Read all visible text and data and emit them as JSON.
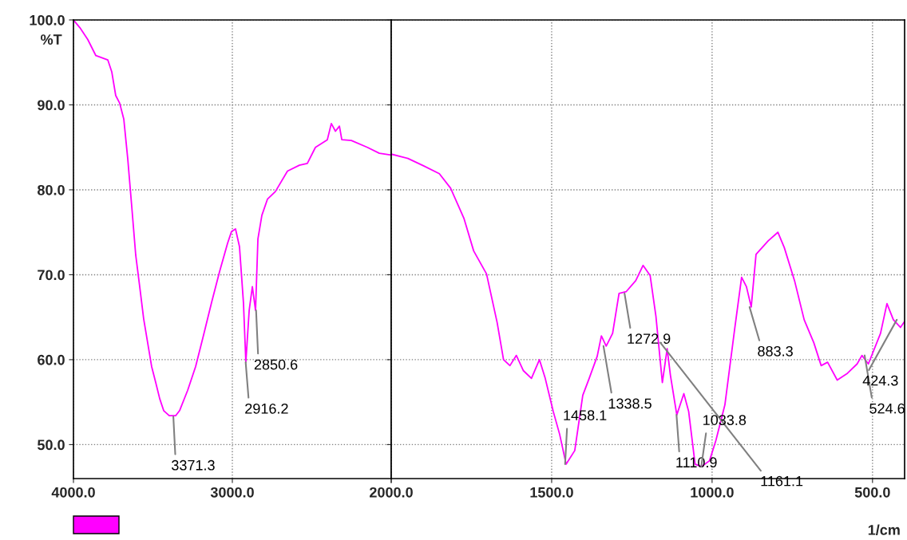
{
  "chart_data": [
    {
      "type": "line",
      "ylabel": "%T",
      "color": "#ff00ff",
      "grid": true,
      "xlim": [
        4000,
        2000
      ],
      "ylim": [
        46,
        100
      ],
      "xticks": [
        {
          "value": 4000,
          "label": "4000.0"
        },
        {
          "value": 3000,
          "label": "3000.0"
        },
        {
          "value": 2000,
          "label": "2000.0"
        }
      ],
      "yticks": [
        {
          "value": 50,
          "label": "50.0"
        },
        {
          "value": 60,
          "label": "60.0"
        },
        {
          "value": 70,
          "label": "70.0"
        },
        {
          "value": 80,
          "label": "80.0"
        },
        {
          "value": 90,
          "label": "90.0"
        },
        {
          "value": 100,
          "label": "100.0"
        }
      ],
      "x": [
        4000,
        3960,
        3910,
        3859,
        3784,
        3759,
        3734,
        3709,
        3683,
        3658,
        3633,
        3608,
        3583,
        3558,
        3533,
        3508,
        3482,
        3457,
        3432,
        3397,
        3357,
        3332,
        3281,
        3231,
        3181,
        3131,
        3080,
        3030,
        3005,
        2980,
        2955,
        2930,
        2915,
        2894,
        2874,
        2854,
        2839,
        2814,
        2779,
        2729,
        2653,
        2578,
        2528,
        2477,
        2402,
        2377,
        2351,
        2326,
        2311,
        2251,
        2150,
        2075,
        2000
      ],
      "values": [
        100,
        99.1,
        97.7,
        95.8,
        95.3,
        93.9,
        91.1,
        90.2,
        88.3,
        83.6,
        78.0,
        72.3,
        68.6,
        64.8,
        62.0,
        59.2,
        57.3,
        55.4,
        54.0,
        53.4,
        53.4,
        54.0,
        56.4,
        59.2,
        62.9,
        66.7,
        70.4,
        73.7,
        75.1,
        75.4,
        73.3,
        66.7,
        59.7,
        65.8,
        68.6,
        65.8,
        74.2,
        77.0,
        78.9,
        79.8,
        82.2,
        82.9,
        83.1,
        85.0,
        85.9,
        87.8,
        86.9,
        87.5,
        85.9,
        85.8,
        85.0,
        84.3,
        84.1
      ],
      "annotations": [
        {
          "text": "3371.3",
          "x": 3371.3,
          "y": 53.3
        },
        {
          "text": "2916.2",
          "x": 2916.2,
          "y": 59.7
        },
        {
          "text": "2850.6",
          "x": 2850.6,
          "y": 65.8
        }
      ]
    },
    {
      "type": "line",
      "xlabel": "1/cm",
      "color": "#ff00ff",
      "grid": true,
      "tick_labels": "x",
      "xlim": [
        2000,
        400
      ],
      "ylim": [
        46,
        100
      ],
      "xticks": [
        {
          "value": 2000,
          "label": null
        },
        {
          "value": 1500,
          "label": "1500.0"
        },
        {
          "value": 1000,
          "label": "1000.0"
        },
        {
          "value": 500,
          "label": "500.0"
        }
      ],
      "yticks": [
        {
          "value": 50,
          "label": null
        },
        {
          "value": 60,
          "label": null
        },
        {
          "value": 70,
          "label": null
        },
        {
          "value": 80,
          "label": null
        },
        {
          "value": 90,
          "label": null
        },
        {
          "value": 100,
          "label": null
        }
      ],
      "x": [
        2000,
        1948,
        1898,
        1850,
        1815,
        1773,
        1743,
        1703,
        1670,
        1650,
        1630,
        1610,
        1588,
        1563,
        1538,
        1520,
        1495,
        1475,
        1455,
        1428,
        1403,
        1383,
        1358,
        1345,
        1330,
        1310,
        1290,
        1268,
        1238,
        1215,
        1193,
        1175,
        1155,
        1140,
        1130,
        1110,
        1088,
        1073,
        1053,
        1033,
        1008,
        988,
        960,
        930,
        908,
        893,
        878,
        863,
        825,
        795,
        775,
        743,
        713,
        683,
        660,
        640,
        610,
        578,
        548,
        533,
        513,
        475,
        455,
        435,
        413,
        400
      ],
      "values": [
        84.2,
        83.7,
        82.8,
        81.9,
        80.2,
        76.6,
        72.8,
        70.1,
        64.4,
        60.0,
        59.3,
        60.5,
        58.7,
        57.8,
        60.0,
        57.8,
        53.9,
        51.2,
        47.7,
        49.3,
        55.8,
        57.8,
        60.4,
        62.8,
        61.6,
        63.1,
        67.8,
        68.0,
        69.3,
        71.1,
        69.9,
        65.1,
        57.3,
        61.3,
        58.2,
        53.5,
        56.0,
        53.9,
        47.7,
        47.4,
        48.1,
        50.5,
        54.7,
        63.5,
        69.7,
        68.6,
        66.2,
        72.4,
        74.0,
        75.0,
        73.2,
        69.3,
        64.7,
        62.0,
        59.3,
        59.7,
        57.6,
        58.4,
        59.5,
        60.5,
        59.5,
        63.1,
        66.6,
        64.7,
        63.8,
        64.5
      ],
      "annotations": [
        {
          "text": "1458.1",
          "x": 1458.1,
          "y": 47.7
        },
        {
          "text": "1338.5",
          "x": 1338.5,
          "y": 61.6
        },
        {
          "text": "1272.9",
          "x": 1272.9,
          "y": 67.8
        },
        {
          "text": "1161.1",
          "x": 1161.1,
          "y": 62.0
        },
        {
          "text": "1110.9",
          "x": 1110.9,
          "y": 53.5
        },
        {
          "text": "1033.8",
          "x": 1033.8,
          "y": 47.4
        },
        {
          "text": "883.3",
          "x": 883.3,
          "y": 66.2
        },
        {
          "text": "524.6",
          "x": 524.6,
          "y": 60.5
        },
        {
          "text": "424.3",
          "x": 424.3,
          "y": 64.7
        }
      ]
    }
  ]
}
